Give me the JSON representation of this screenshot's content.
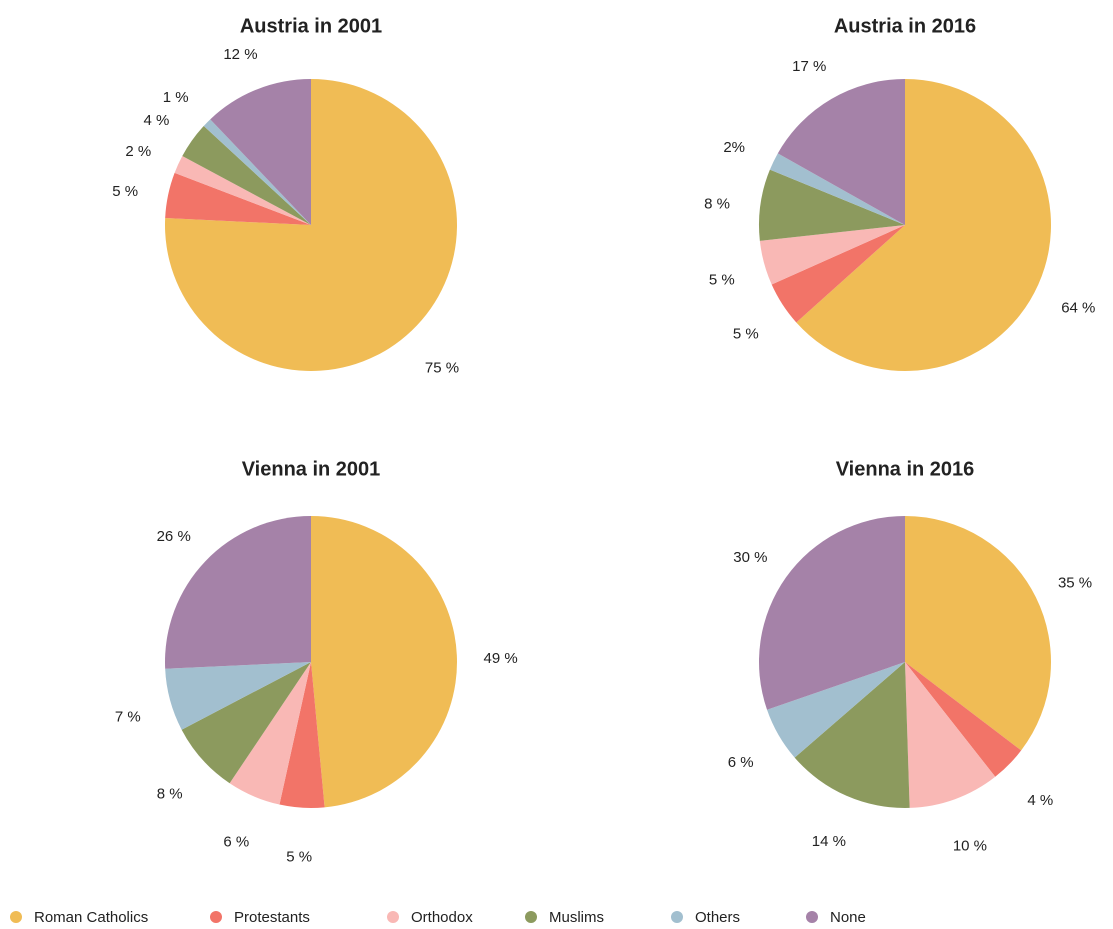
{
  "chart_data": [
    {
      "type": "pie",
      "title": "Austria in 2001",
      "categories": [
        "Roman Catholics",
        "Protestants",
        "Orthodox",
        "Muslims",
        "Others",
        "None"
      ],
      "values": [
        75,
        5,
        2,
        4,
        1,
        12
      ],
      "value_labels": [
        "75 %",
        "5 %",
        "2 %",
        "4 %",
        "1 %",
        "12 %"
      ],
      "colors": [
        "#f0bc55",
        "#f27468",
        "#f9b8b5",
        "#8c9a5e",
        "#a2bfcf",
        "#a582a8"
      ]
    },
    {
      "type": "pie",
      "title": "Austria in 2016",
      "categories": [
        "Roman Catholics",
        "Protestants",
        "Orthodox",
        "Muslims",
        "Others",
        "None"
      ],
      "values": [
        64,
        5,
        5,
        8,
        2,
        17
      ],
      "value_labels": [
        "64 %",
        "5 %",
        "5 %",
        "8 %",
        "2%",
        "17 %"
      ],
      "colors": [
        "#f0bc55",
        "#f27468",
        "#f9b8b5",
        "#8c9a5e",
        "#a2bfcf",
        "#a582a8"
      ]
    },
    {
      "type": "pie",
      "title": "Vienna in 2001",
      "categories": [
        "Roman Catholics",
        "Protestants",
        "Orthodox",
        "Muslims",
        "Others",
        "None"
      ],
      "values": [
        49,
        5,
        6,
        8,
        7,
        26
      ],
      "value_labels": [
        "49 %",
        "5 %",
        "6 %",
        "8 %",
        "7 %",
        "26 %"
      ],
      "colors": [
        "#f0bc55",
        "#f27468",
        "#f9b8b5",
        "#8c9a5e",
        "#a2bfcf",
        "#a582a8"
      ]
    },
    {
      "type": "pie",
      "title": "Vienna in 2016",
      "categories": [
        "Roman Catholics",
        "Protestants",
        "Orthodox",
        "Muslims",
        "Others",
        "None"
      ],
      "values": [
        35,
        4,
        10,
        14,
        6,
        30
      ],
      "value_labels": [
        "35 %",
        "4 %",
        "10 %",
        "14 %",
        "6 %",
        "30 %"
      ],
      "colors": [
        "#f0bc55",
        "#f27468",
        "#f9b8b5",
        "#8c9a5e",
        "#a2bfcf",
        "#a582a8"
      ]
    }
  ]
}
